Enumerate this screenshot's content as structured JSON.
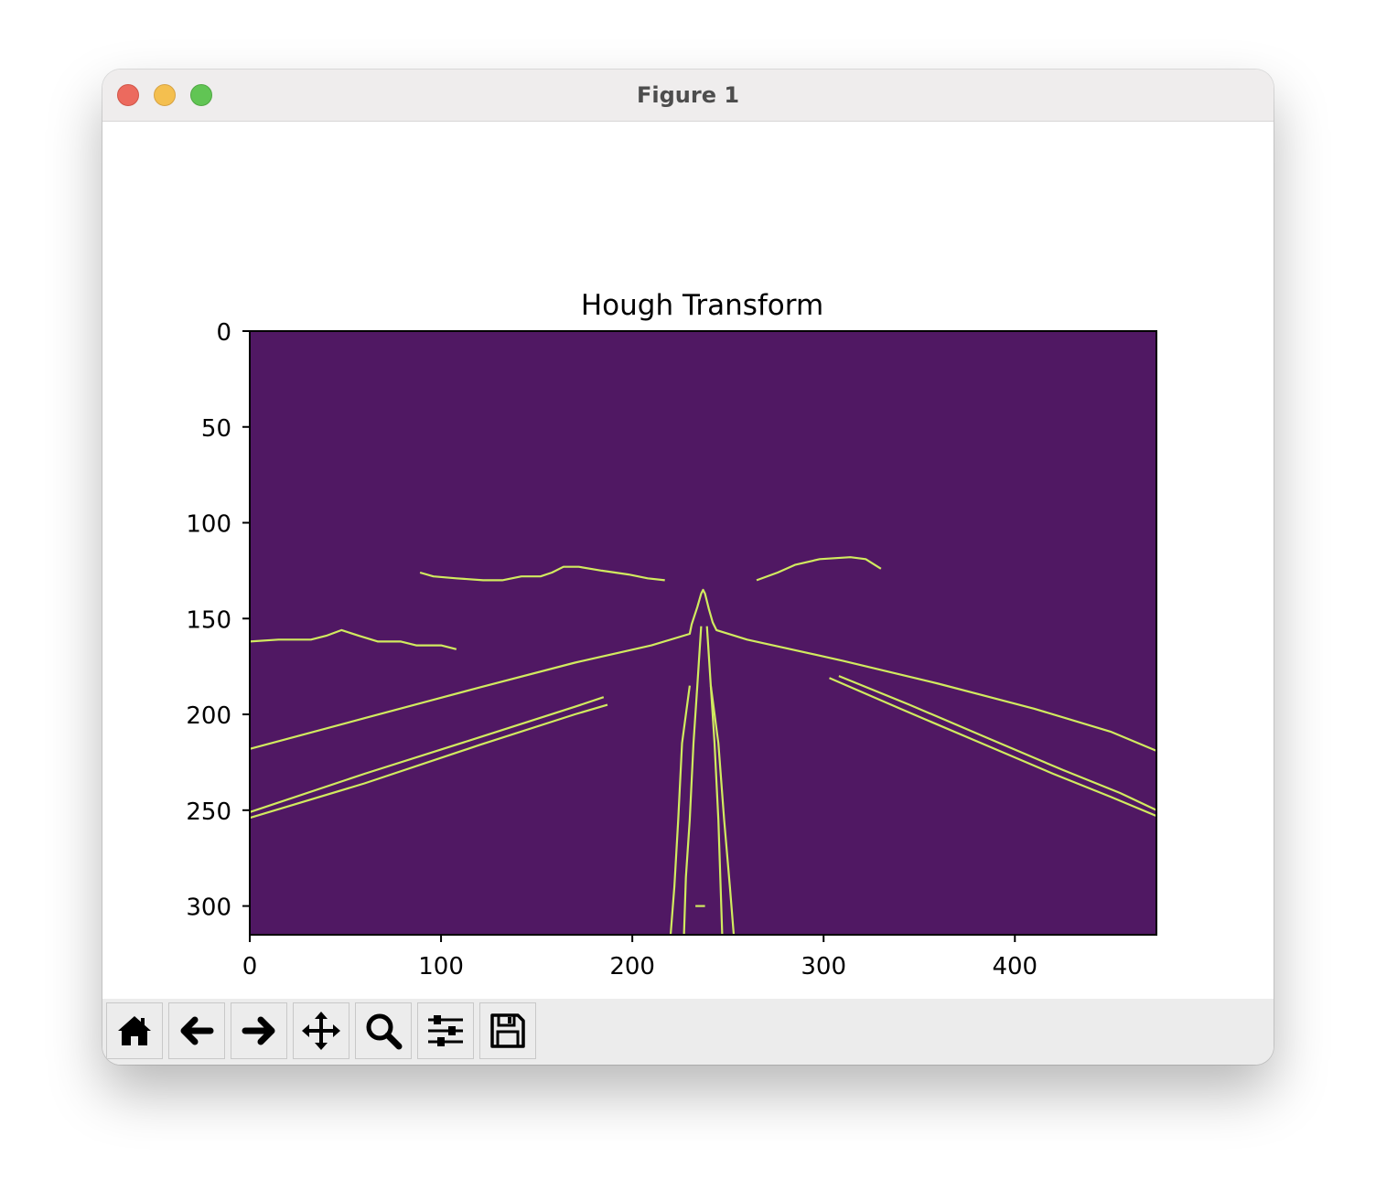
{
  "window": {
    "title": "Figure 1"
  },
  "toolbar": {
    "buttons": [
      {
        "name": "home-button",
        "icon": "home-icon"
      },
      {
        "name": "back-button",
        "icon": "arrow-left-icon"
      },
      {
        "name": "forward-button",
        "icon": "arrow-right-icon"
      },
      {
        "name": "pan-button",
        "icon": "move-icon"
      },
      {
        "name": "zoom-button",
        "icon": "search-icon"
      },
      {
        "name": "configure-subplots-button",
        "icon": "sliders-icon"
      },
      {
        "name": "save-button",
        "icon": "save-icon"
      }
    ]
  },
  "colors": {
    "background": "#501863",
    "edge": "#d1ea5f"
  },
  "chart_data": {
    "type": "image",
    "title": "Hough Transform",
    "xlabel": "",
    "ylabel": "",
    "xlim": [
      0,
      474
    ],
    "ylim": [
      315,
      0
    ],
    "xticks": [
      0,
      100,
      200,
      300,
      400
    ],
    "yticks": [
      0,
      50,
      100,
      150,
      200,
      250,
      300
    ],
    "edge_paths": [
      [
        [
          0,
          162
        ],
        [
          15,
          161
        ],
        [
          32,
          161
        ],
        [
          40,
          159
        ],
        [
          48,
          156
        ],
        [
          57,
          159
        ],
        [
          67,
          162
        ],
        [
          79,
          162
        ],
        [
          87,
          164
        ],
        [
          100,
          164
        ],
        [
          108,
          166
        ]
      ],
      [
        [
          89,
          126
        ],
        [
          96,
          128
        ],
        [
          108,
          129
        ],
        [
          122,
          130
        ],
        [
          132,
          130
        ],
        [
          142,
          128
        ],
        [
          152,
          128
        ],
        [
          158,
          126
        ],
        [
          164,
          123
        ],
        [
          172,
          123
        ],
        [
          184,
          125
        ],
        [
          198,
          127
        ],
        [
          208,
          129
        ],
        [
          217,
          130
        ]
      ],
      [
        [
          265,
          130
        ],
        [
          276,
          126
        ],
        [
          285,
          122
        ],
        [
          298,
          119
        ],
        [
          314,
          118
        ],
        [
          322,
          119
        ],
        [
          330,
          124
        ]
      ],
      [
        [
          0,
          218
        ],
        [
          60,
          202
        ],
        [
          120,
          186
        ],
        [
          170,
          173
        ],
        [
          210,
          164
        ],
        [
          230,
          158
        ],
        [
          231,
          153
        ],
        [
          234,
          144
        ],
        [
          236,
          137
        ],
        [
          237,
          135
        ],
        [
          238,
          137
        ],
        [
          240,
          145
        ],
        [
          242,
          152
        ],
        [
          244,
          156
        ],
        [
          260,
          161
        ],
        [
          310,
          172
        ],
        [
          360,
          184
        ],
        [
          410,
          197
        ],
        [
          450,
          209
        ],
        [
          474,
          219
        ]
      ],
      [
        [
          0,
          251
        ],
        [
          60,
          231
        ],
        [
          120,
          212
        ],
        [
          170,
          196
        ],
        [
          185,
          191
        ]
      ],
      [
        [
          0,
          254
        ],
        [
          60,
          236
        ],
        [
          120,
          216
        ],
        [
          170,
          200
        ],
        [
          187,
          195
        ]
      ],
      [
        [
          303,
          181
        ],
        [
          340,
          197
        ],
        [
          380,
          214
        ],
        [
          420,
          231
        ],
        [
          450,
          243
        ],
        [
          474,
          253
        ]
      ],
      [
        [
          308,
          180
        ],
        [
          345,
          195
        ],
        [
          385,
          212
        ],
        [
          425,
          229
        ],
        [
          455,
          241
        ],
        [
          474,
          250
        ]
      ],
      [
        [
          236,
          154
        ],
        [
          234,
          185
        ],
        [
          232,
          215
        ],
        [
          230,
          255
        ],
        [
          228,
          285
        ],
        [
          227,
          315
        ]
      ],
      [
        [
          239,
          154
        ],
        [
          241,
          185
        ],
        [
          243,
          215
        ],
        [
          245,
          255
        ],
        [
          246,
          285
        ],
        [
          247,
          315
        ]
      ],
      [
        [
          230,
          185
        ],
        [
          226,
          215
        ],
        [
          224,
          255
        ],
        [
          222,
          290
        ],
        [
          220,
          315
        ]
      ],
      [
        [
          241,
          185
        ],
        [
          245,
          215
        ],
        [
          248,
          255
        ],
        [
          251,
          290
        ],
        [
          253,
          315
        ]
      ],
      [
        [
          233,
          300
        ],
        [
          238,
          300
        ]
      ]
    ]
  }
}
